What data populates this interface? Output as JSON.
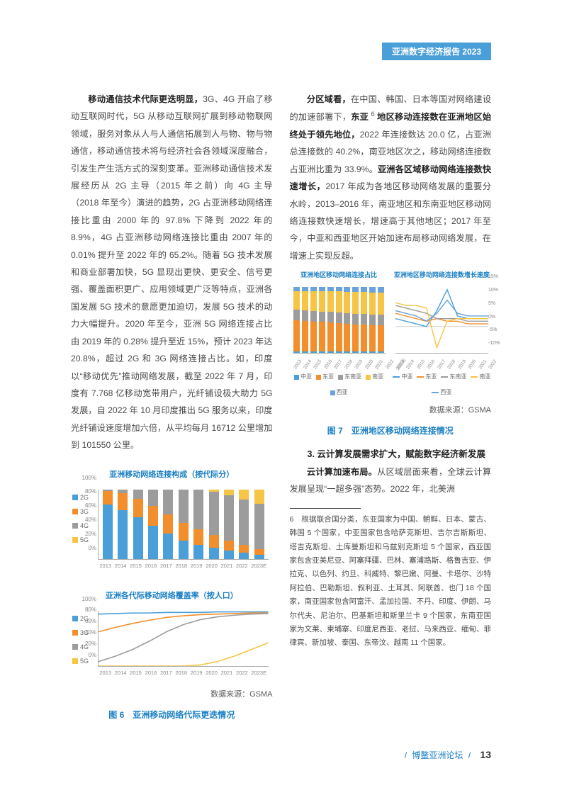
{
  "header": {
    "title": "亚洲数字经济报告 2023"
  },
  "left": {
    "p1_boldlead": "移动通信技术代际更迭明显，",
    "p1_rest": "3G、4G 开启了移动互联网时代，5G 从移动互联网扩展到移动物联网领域，服务对象从人与人通信拓展到人与物、物与物通信，移动通信技术将与经济社会各领域深度融合，引发生产生活方式的深刻变革。亚洲移动通信技术发展经历从 2G 主导（2015 年之前）向 4G 主导（2018 年至今）演进的趋势，2G 占亚洲移动网络连接比重由 2000 年的 97.8% 下降到 2022 年的 8.9%，4G 占亚洲移动网络连接比重由 2007 年的 0.01% 提升至 2022 年的 65.2%。随着 5G 技术发展和商业部署加快，5G 显现出更快、更安全、信号更强、覆盖面积更广、应用领域更广泛等特点，亚洲各国发展 5G 技术的意愿更加迫切，发展 5G 技术的动力大幅提升。2020 年至今，亚洲 5G 网络连接占比由 2019 年的 0.28% 提升至近 15%，预计 2023 年达 20.8%，超过 2G 和 3G 网络连接占比。如，印度以“移动优先”推动网络发展，截至 2022 年 7 月，印度有 7.768 亿移动宽带用户，光纤铺设极大助力 5G 发展，自 2022 年 10 月印度推出 5G 服务以来，印度光纤铺设速度增加六倍，从平均每月 16712 公里增加到 101550 公里。",
    "chart1": {
      "title": "亚洲移动网络连接构成（按代际分）",
      "type": "stacked-bar",
      "years": [
        "2013",
        "2014",
        "2015",
        "2016",
        "2017",
        "2018",
        "2019",
        "2020",
        "2021",
        "2022",
        "2023E"
      ],
      "series": [
        "2G",
        "3G",
        "4G",
        "5G"
      ],
      "colors": {
        "2G": "#4a9fd8",
        "3G": "#f28e2b",
        "4G": "#9c9c9c",
        "5G": "#f6c545"
      },
      "y_ticks": [
        "0%",
        "20%",
        "40%",
        "60%",
        "80%",
        "100%"
      ],
      "data": [
        {
          "2G": 78,
          "3G": 20,
          "4G": 2,
          "5G": 0
        },
        {
          "2G": 70,
          "3G": 24,
          "4G": 6,
          "5G": 0
        },
        {
          "2G": 60,
          "3G": 26,
          "4G": 14,
          "5G": 0
        },
        {
          "2G": 48,
          "3G": 28,
          "4G": 24,
          "5G": 0
        },
        {
          "2G": 36,
          "3G": 28,
          "4G": 36,
          "5G": 0
        },
        {
          "2G": 26,
          "3G": 26,
          "4G": 48,
          "5G": 0
        },
        {
          "2G": 20,
          "3G": 22,
          "4G": 57.7,
          "5G": 0.3
        },
        {
          "2G": 16,
          "3G": 18,
          "4G": 62,
          "5G": 4
        },
        {
          "2G": 12,
          "3G": 14,
          "4G": 65,
          "5G": 9
        },
        {
          "2G": 8.9,
          "3G": 11,
          "4G": 65.2,
          "5G": 14.9
        },
        {
          "2G": 6,
          "3G": 8,
          "4G": 65.2,
          "5G": 20.8
        }
      ]
    },
    "chart2": {
      "title": "亚洲各代际移动网络覆盖率（按人口）",
      "type": "line",
      "years": [
        "2013",
        "2014",
        "2015",
        "2016",
        "2017",
        "2018",
        "2019",
        "2020",
        "2021",
        "2022",
        "2023E"
      ],
      "series": [
        "2G",
        "3G",
        "4G",
        "5G"
      ],
      "colors": {
        "2G": "#4a9fd8",
        "3G": "#f28e2b",
        "4G": "#9c9c9c",
        "5G": "#f6c545"
      },
      "y_ticks": [
        "0%",
        "20%",
        "40%",
        "60%",
        "80%",
        "100%"
      ],
      "data": {
        "2G": [
          94,
          95,
          96,
          96,
          97,
          97,
          97,
          98,
          98,
          98,
          98
        ],
        "3G": [
          62,
          70,
          77,
          83,
          88,
          91,
          93,
          94,
          95,
          96,
          96
        ],
        "4G": [
          8,
          18,
          30,
          45,
          62,
          75,
          84,
          89,
          92,
          94,
          95
        ],
        "5G": [
          0,
          0,
          0,
          0,
          0,
          0,
          2,
          8,
          18,
          30,
          42
        ]
      }
    },
    "source": "数据来源：GSMA",
    "caption": "图 6　亚洲移动网络代际更迭情况"
  },
  "right": {
    "p1_boldlead": "分区域看，",
    "p1_mid1": "在中国、韩国、日本等国对网络建设的加速部署下，",
    "p1_bold2": "东亚 ",
    "p1_sup": "6",
    "p1_bold2b": " 地区移动连接数在亚洲地区始终处于领先地位，",
    "p1_mid2": "2022 年连接数达 20.0 亿，占亚洲总连接数的 40.2%，南亚地区次之，移动网络连接数占亚洲比重为 33.9%。",
    "p1_bold3": "亚洲各区域移动网络连接数快速增长，",
    "p1_mid3": "2017 年成为各地区移动网络发展的重要分水岭，2013–2016 年，南亚地区和东南亚地区移动网络连接数快速增长，增速高于其他地区；2017 年至今，中亚和西亚地区开始加速布局移动网络发展，在增速上实现反超。",
    "fig7": {
      "left": {
        "title": "亚洲地区移动网络连接占比",
        "type": "stacked-bar",
        "years": [
          "2013",
          "2014",
          "2015",
          "2016",
          "2017",
          "2018",
          "2019",
          "2020",
          "2021",
          "2022",
          "2023E"
        ],
        "regions": [
          "中亚",
          "东亚",
          "东南亚",
          "南亚",
          "西亚"
        ],
        "colors": {
          "中亚": "#4a9fd8",
          "东亚": "#f28e2b",
          "东南亚": "#9c9c9c",
          "南亚": "#f6c545",
          "西亚": "#6aa2dc"
        },
        "data": [
          {
            "中亚": 2,
            "东亚": 48,
            "东南亚": 16,
            "南亚": 28,
            "西亚": 6
          },
          {
            "中亚": 2,
            "东亚": 47,
            "东南亚": 16,
            "南亚": 29,
            "西亚": 6
          },
          {
            "中亚": 2,
            "东亚": 46,
            "东南亚": 16,
            "南亚": 30,
            "西亚": 6
          },
          {
            "中亚": 2,
            "东亚": 45,
            "东南亚": 16,
            "南亚": 31,
            "西亚": 6
          },
          {
            "中亚": 2,
            "东亚": 44,
            "东南亚": 16,
            "南亚": 32,
            "西亚": 6
          },
          {
            "中亚": 2,
            "东亚": 43,
            "东南亚": 16,
            "南亚": 33,
            "西亚": 6
          },
          {
            "中亚": 2,
            "东亚": 42,
            "东南亚": 16,
            "南亚": 33,
            "西亚": 7
          },
          {
            "中亚": 2,
            "东亚": 41,
            "东南亚": 16,
            "南亚": 34,
            "西亚": 7
          },
          {
            "中亚": 2,
            "东亚": 41,
            "东南亚": 16,
            "南亚": 34,
            "西亚": 7
          },
          {
            "中亚": 2,
            "东亚": 40.2,
            "东南亚": 16,
            "南亚": 33.9,
            "西亚": 7.9
          },
          {
            "中亚": 2,
            "东亚": 40,
            "东南亚": 16,
            "南亚": 34,
            "西亚": 8
          }
        ]
      },
      "right": {
        "title": "亚洲地区移动网络连接数增长速度",
        "type": "line",
        "years": [
          "2013",
          "2014",
          "2015",
          "2016",
          "2017",
          "2018",
          "2019",
          "2020",
          "2021",
          "2022"
        ],
        "regions": [
          "中亚",
          "东亚",
          "东南亚",
          "南亚",
          "西亚"
        ],
        "colors": {
          "中亚": "#4a9fd8",
          "东亚": "#f28e2b",
          "东南亚": "#9c9c9c",
          "南亚": "#f6c545",
          "西亚": "#6aa2dc"
        },
        "y_ticks": [
          "-10%",
          "-5%",
          "0%",
          "5%",
          "10%",
          "15%"
        ],
        "ylim": [
          -10,
          15
        ],
        "data": {
          "中亚": [
            3,
            2,
            1,
            0,
            6,
            14,
            4,
            3,
            3,
            3
          ],
          "东亚": [
            5,
            4,
            3,
            2,
            3,
            2,
            2,
            1,
            1,
            1
          ],
          "东南亚": [
            8,
            7,
            6,
            5,
            3,
            3,
            3,
            2,
            2,
            2
          ],
          "南亚": [
            9,
            8,
            8,
            7,
            -8,
            2,
            3,
            3,
            3,
            3
          ],
          "西亚": [
            6,
            5,
            4,
            2,
            5,
            10,
            5,
            4,
            4,
            4
          ]
        }
      },
      "source": "数据来源：GSMA",
      "caption": "图 7　亚洲地区移动网络连接情况"
    },
    "h3": "3. 云计算发展需求扩大，赋能数字经济新发展",
    "p3_boldlead": "云计算加速布局。",
    "p3_rest": "从区域层面来看，全球云计算发展呈现“一超多强”态势。2022 年，北美洲",
    "footnote": "6　根据联合国分类，东亚国家为中国、朝鲜、日本、蒙古、韩国 5 个国家，中亚国家包含哈萨克斯坦、吉尔吉斯斯坦、塔吉克斯坦、土库曼斯坦和乌兹别克斯坦 5 个国家，西亚国家包含亚美尼亚、阿塞拜疆、巴林、塞浦路斯、格鲁吉亚、伊拉克、以色列、约旦、科威特、黎巴嫩、阿曼、卡塔尔、沙特阿拉伯、巴勒斯坦、叙利亚、土耳其、阿联酋、也门 18 个国家，南亚国家包含阿富汗、孟加拉国、不丹、印度、伊朗、马尔代夫、尼泊尔、巴基斯坦和斯里兰卡 9 个国家，东南亚国家为文莱、柬埔寨、印度尼西亚、老挝、马来西亚、缅甸、菲律宾、新加坡、泰国、东帝汶、越南 11 个国家。"
  },
  "footer": {
    "label": "博鳌亚洲论坛",
    "page": "13"
  }
}
